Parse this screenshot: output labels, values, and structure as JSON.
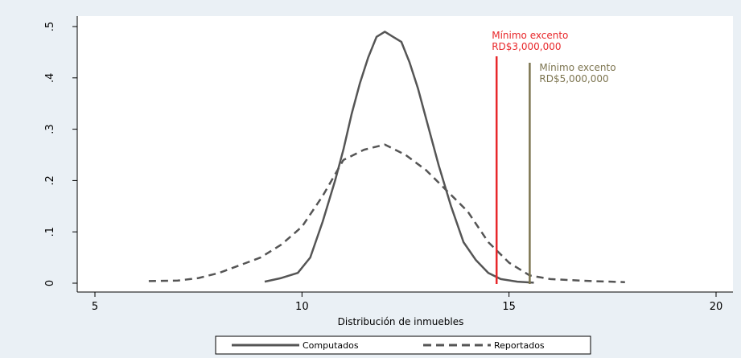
{
  "chart_data": {
    "type": "line",
    "title": "",
    "xlabel": "Distribución de inmuebles",
    "ylabel": "",
    "xlim": [
      5,
      20
    ],
    "ylim": [
      0,
      0.5
    ],
    "x_ticks": [
      5,
      10,
      15,
      20
    ],
    "x_tick_labels": [
      "5",
      "10",
      "15",
      "20"
    ],
    "y_ticks": [
      0,
      0.1,
      0.2,
      0.3,
      0.4,
      0.5
    ],
    "y_tick_labels": [
      "0",
      ".1",
      ".2",
      ".3",
      ".4",
      ".5"
    ],
    "grid": false,
    "legend_position": "bottom",
    "series": [
      {
        "name": "Computados",
        "style": "solid",
        "color": "#555555",
        "x": [
          9.1,
          9.5,
          9.9,
          10.2,
          10.5,
          10.8,
          11.0,
          11.2,
          11.4,
          11.6,
          11.8,
          12.0,
          12.2,
          12.4,
          12.6,
          12.8,
          13.0,
          13.3,
          13.6,
          13.9,
          14.2,
          14.5,
          14.8,
          15.2,
          15.6
        ],
        "y": [
          0.003,
          0.01,
          0.02,
          0.05,
          0.12,
          0.2,
          0.26,
          0.33,
          0.39,
          0.44,
          0.48,
          0.49,
          0.48,
          0.47,
          0.43,
          0.38,
          0.32,
          0.23,
          0.15,
          0.08,
          0.045,
          0.02,
          0.008,
          0.003,
          0.001
        ]
      },
      {
        "name": "Reportados",
        "style": "dashed",
        "color": "#555555",
        "x": [
          6.3,
          7.0,
          7.5,
          8.0,
          8.5,
          9.0,
          9.5,
          10.0,
          10.5,
          11.0,
          11.5,
          12.0,
          12.5,
          13.0,
          13.5,
          14.0,
          14.5,
          15.0,
          15.5,
          16.0,
          16.5,
          17.0,
          17.8
        ],
        "y": [
          0.004,
          0.005,
          0.01,
          0.02,
          0.035,
          0.05,
          0.075,
          0.11,
          0.17,
          0.24,
          0.26,
          0.27,
          0.25,
          0.22,
          0.18,
          0.14,
          0.08,
          0.04,
          0.015,
          0.008,
          0.006,
          0.004,
          0.002
        ]
      }
    ],
    "reference_lines": [
      {
        "x": 14.7,
        "color": "#e8282b",
        "label_line1": "Mínimo excento",
        "label_line2": "RD$3,000,000"
      },
      {
        "x": 15.5,
        "color": "#7d7550",
        "label_line1": "Mínimo excento",
        "label_line2": "RD$5,000,000"
      }
    ]
  }
}
